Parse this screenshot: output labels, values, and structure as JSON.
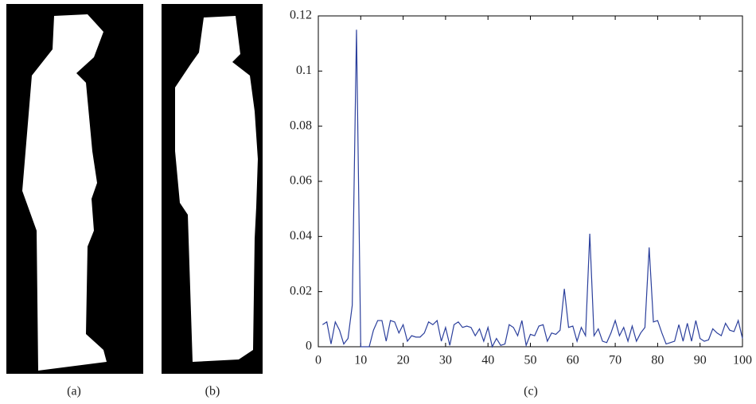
{
  "figure": {
    "panel_labels": [
      "(a)",
      "(b)",
      "(c)"
    ]
  },
  "chart_data": {
    "type": "line",
    "x": [
      1,
      2,
      3,
      4,
      5,
      6,
      7,
      8,
      9,
      10,
      11,
      12,
      13,
      14,
      15,
      16,
      17,
      18,
      19,
      20,
      21,
      22,
      23,
      24,
      25,
      26,
      27,
      28,
      29,
      30,
      31,
      32,
      33,
      34,
      35,
      36,
      37,
      38,
      39,
      40,
      41,
      42,
      43,
      44,
      45,
      46,
      47,
      48,
      49,
      50,
      51,
      52,
      53,
      54,
      55,
      56,
      57,
      58,
      59,
      60,
      61,
      62,
      63,
      64,
      65,
      66,
      67,
      68,
      69,
      70,
      71,
      72,
      73,
      74,
      75,
      76,
      77,
      78,
      79,
      80,
      81,
      82,
      83,
      84,
      85,
      86,
      87,
      88,
      89,
      90,
      91,
      92,
      93,
      94,
      95,
      96,
      97,
      98,
      99,
      100
    ],
    "series": [
      {
        "color": "#2b3f9c",
        "values": [
          0.008,
          0.009,
          0.001,
          0.009,
          0.006,
          0.001,
          0.003,
          0.015,
          0.115,
          0,
          0,
          0,
          0.006,
          0.0095,
          0.0095,
          0.002,
          0.0095,
          0.009,
          0.005,
          0.008,
          0.002,
          0.004,
          0.0035,
          0.0035,
          0.005,
          0.009,
          0.008,
          0.0095,
          0.002,
          0.007,
          0.0005,
          0.008,
          0.009,
          0.007,
          0.0075,
          0.007,
          0.004,
          0.0065,
          0.002,
          0.007,
          0,
          0.003,
          0.0005,
          0.001,
          0.008,
          0.007,
          0.004,
          0.0095,
          0.0005,
          0.0045,
          0.004,
          0.0075,
          0.008,
          0.002,
          0.005,
          0.0045,
          0.006,
          0.021,
          0.007,
          0.0075,
          0.002,
          0.007,
          0.004,
          0.041,
          0.004,
          0.0065,
          0.002,
          0.0015,
          0.005,
          0.0095,
          0.004,
          0.007,
          0.002,
          0.0075,
          0.002,
          0.005,
          0.007,
          0.036,
          0.009,
          0.0095,
          0.005,
          0.001,
          0.0015,
          0.002,
          0.008,
          0.002,
          0.0085,
          0.002,
          0.0095,
          0.003,
          0.002,
          0.0025,
          0.0065,
          0.005,
          0.004,
          0.0085,
          0.006,
          0.0055,
          0.0095,
          0.003
        ]
      }
    ],
    "xlim": [
      0,
      100
    ],
    "xticks": [
      0,
      10,
      20,
      30,
      40,
      50,
      60,
      70,
      80,
      90,
      100
    ],
    "ylim": [
      0,
      0.12
    ],
    "yticks": [
      0,
      0.02,
      0.04,
      0.06,
      0.08,
      0.1,
      0.12
    ]
  }
}
